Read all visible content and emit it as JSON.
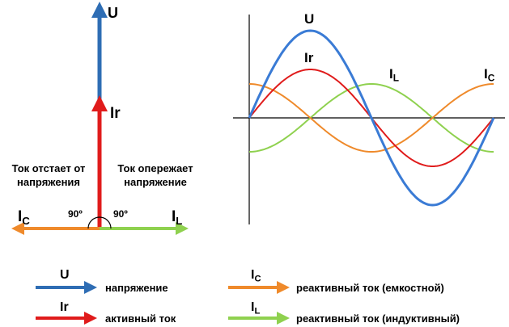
{
  "vector_diagram": {
    "u_label": "U",
    "ir_label": "Ir",
    "ic_label": "IC",
    "il_label": "IL",
    "lag_text_line1": "Ток отстает от",
    "lag_text_line2": "напряжения",
    "lead_text_line1": "Ток опережает",
    "lead_text_line2": "напряжение",
    "angle_left": "90º",
    "angle_right": "90º"
  },
  "waveforms": {
    "u_label": "U",
    "ir_label": "Ir",
    "il_label": "IL",
    "ic_label": "IC"
  },
  "legend": [
    {
      "symbol": "U",
      "text": "напряжение",
      "color": "#2e6db4"
    },
    {
      "symbol": "Ir",
      "text": "активный ток",
      "color": "#e01b1b"
    },
    {
      "symbol": "IC",
      "text": "реактивный ток (емкостной)",
      "color": "#ef8a2b"
    },
    {
      "symbol": "IL",
      "text": "реактивный ток (индуктивный)",
      "color": "#8fd14f"
    }
  ],
  "colors": {
    "voltage": "#2e6db4",
    "active": "#e01b1b",
    "capacitive": "#ef8a2b",
    "inductive": "#8fd14f"
  }
}
